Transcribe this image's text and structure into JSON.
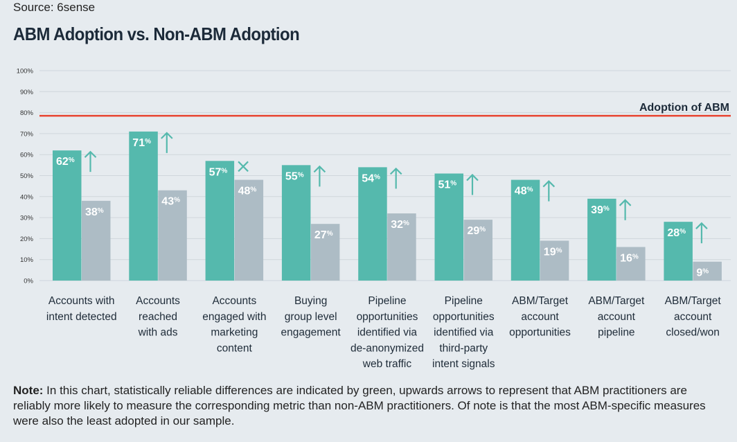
{
  "source": "Source: 6sense",
  "title": "ABM Adoption vs. Non-ABM Adoption",
  "reference_line": {
    "label": "Adoption of ABM",
    "value": 78.5,
    "color": "#e8432f"
  },
  "colors": {
    "abm": "#55b9ad",
    "non_abm": "#adbcc5",
    "up_arrow": "#55b9ad",
    "no_difference_cross": "#55b9ad",
    "grid": "#cfd6dc"
  },
  "chart_data": {
    "type": "bar",
    "ylim": [
      0,
      100
    ],
    "y_ticks": [
      "0%",
      "10%",
      "20%",
      "30%",
      "40%",
      "50%",
      "60%",
      "70%",
      "80%",
      "90%",
      "100%"
    ],
    "grid": true,
    "categories": [
      [
        "Accounts with",
        "intent detected"
      ],
      [
        "Accounts",
        "reached",
        "with ads"
      ],
      [
        "Accounts",
        "engaged with",
        "marketing",
        "content"
      ],
      [
        "Buying",
        "group level",
        "engagement"
      ],
      [
        "Pipeline",
        "opportunities",
        "identified via",
        "de-anonymized",
        "web traffic"
      ],
      [
        "Pipeline",
        "opportunities",
        "identified via",
        "third-party",
        "intent signals"
      ],
      [
        "ABM/Target",
        "account",
        "opportunities"
      ],
      [
        "ABM/Target",
        "account",
        "pipeline"
      ],
      [
        "ABM/Target",
        "account",
        "closed/won"
      ]
    ],
    "series": [
      {
        "values": [
          62,
          71,
          57,
          55,
          54,
          51,
          48,
          39,
          28
        ],
        "color": "#55b9ad"
      },
      {
        "values": [
          38,
          43,
          48,
          27,
          32,
          29,
          19,
          16,
          9
        ],
        "color": "#adbcc5"
      }
    ],
    "significance": [
      "up",
      "up",
      "x",
      "up",
      "up",
      "up",
      "up",
      "up",
      "up"
    ],
    "value_suffix": "%"
  },
  "note": {
    "label": "Note:",
    "text": " In this chart, statistically reliable differences are indicated by green, upwards arrows to represent that ABM practitioners are reliably more likely to measure the corresponding metric than non-ABM practitioners. Of note is that the most ABM-specific measures were also the least adopted in our sample."
  }
}
